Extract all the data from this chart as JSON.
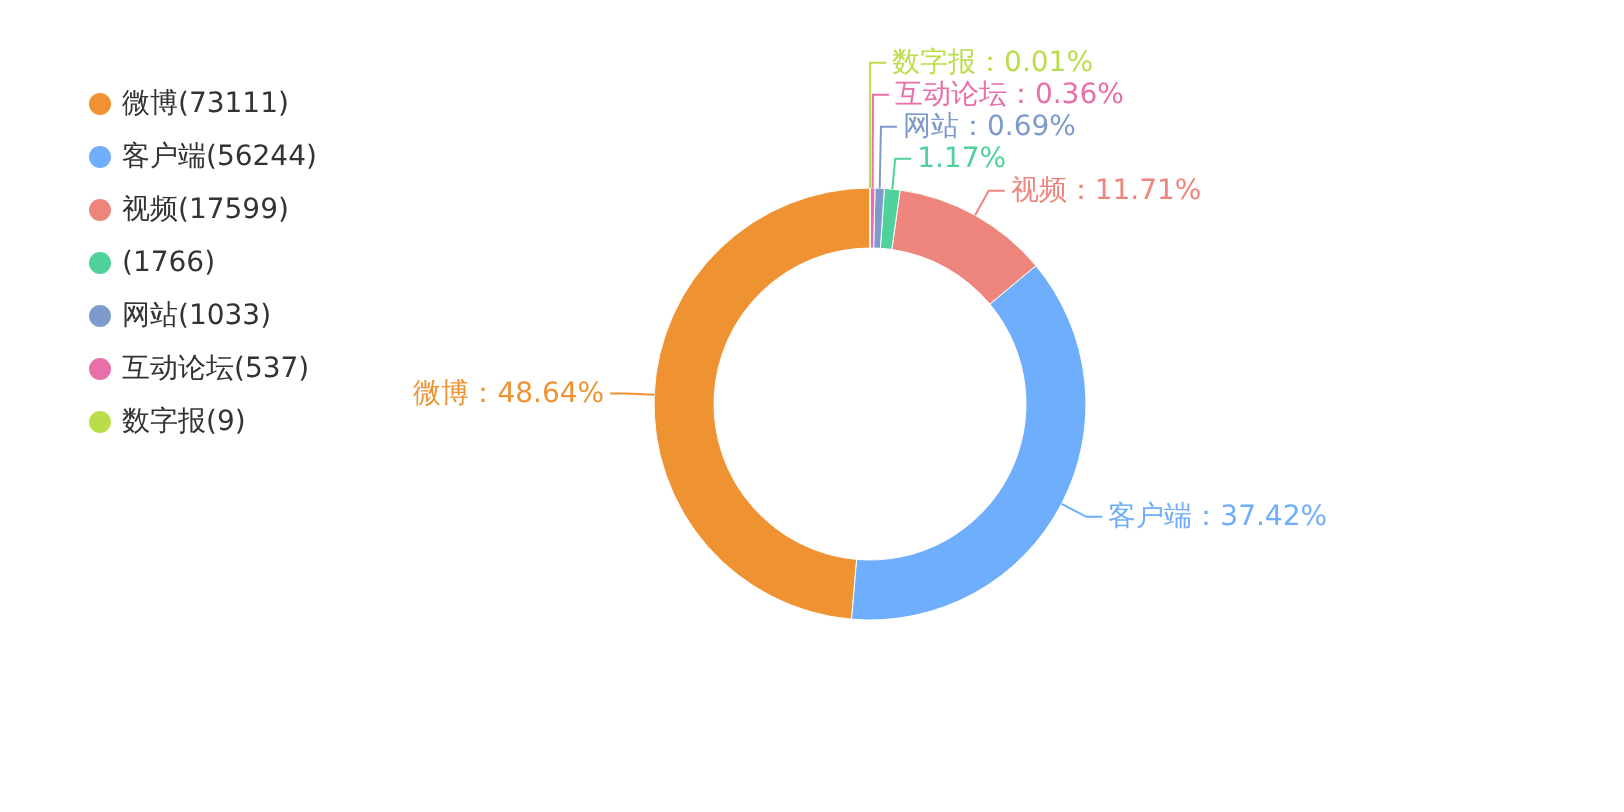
{
  "chart_data": {
    "type": "donut",
    "categories": [
      "微博",
      "客户端",
      "视频",
      null,
      "网站",
      "互动论坛",
      "数字报"
    ],
    "values": [
      48.64,
      37.42,
      11.71,
      1.17,
      0.69,
      0.36,
      0.01
    ],
    "value_labels": [
      "：48.64%",
      "：37.42%",
      "：11.71%",
      "1.17%",
      "：0.69%",
      "：0.36%",
      "：0.01%"
    ],
    "colors": [
      "#ef9232",
      "#6eaefc",
      "#ee857c",
      "#4fd19c",
      "#7e9acb",
      "#e86faa",
      "#b9de4a"
    ],
    "annotations": [
      "(73111)",
      "(56244)",
      "(17599)",
      "(1766)",
      "(1033)",
      "(537)",
      "(9)"
    ],
    "legend": "top left"
  }
}
